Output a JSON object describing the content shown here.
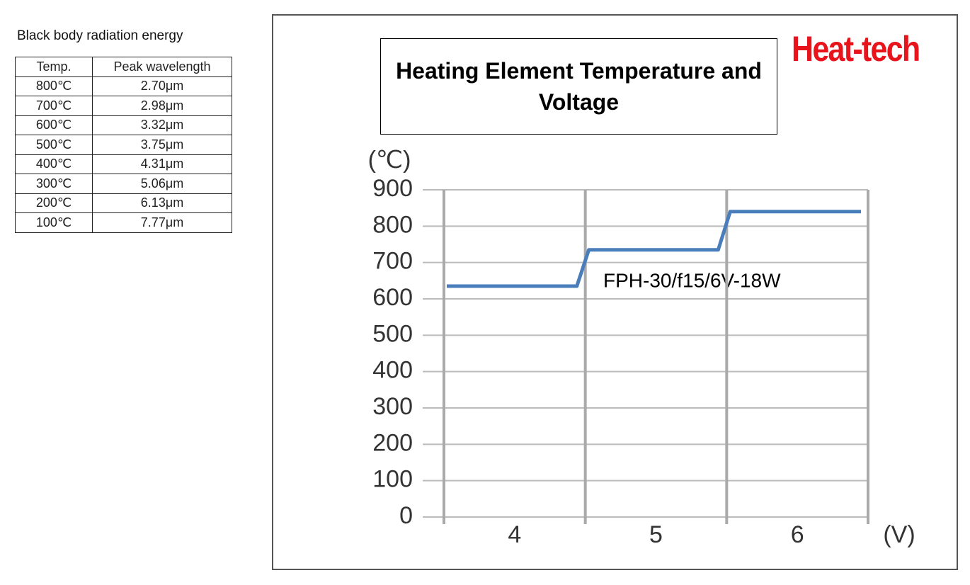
{
  "table": {
    "title": "Black body radiation energy",
    "header": [
      "Temp.",
      "Peak wavelength"
    ],
    "rows": [
      [
        "800℃",
        "2.70μm"
      ],
      [
        "700℃",
        "2.98μm"
      ],
      [
        "600℃",
        "3.32μm"
      ],
      [
        "500℃",
        "3.75μm"
      ],
      [
        "400℃",
        "4.31μm"
      ],
      [
        "300℃",
        "5.06μm"
      ],
      [
        "200℃",
        "6.13μm"
      ],
      [
        "100℃",
        "7.77μm"
      ]
    ]
  },
  "logo": "Heat-tech",
  "chart_data": {
    "type": "line",
    "title": "Heating Element Temperature and Voltage",
    "y_label": "(℃)",
    "x_label": "(V)",
    "annotation": "FPH-30/f15/6V-18W",
    "x": [
      3.52,
      4.44,
      4.525,
      5.44,
      5.525,
      6.45
    ],
    "series": [
      {
        "name": "FPH-30/f15/6V-18W",
        "color": "#4a7ebb",
        "values": [
          635,
          635,
          735,
          735,
          840,
          840
        ]
      }
    ],
    "xlim": [
      3.5,
      6.5
    ],
    "xticks": [
      4,
      5,
      6
    ],
    "ylim": [
      0,
      900
    ],
    "yticks": [
      0,
      100,
      200,
      300,
      400,
      500,
      600,
      700,
      800,
      900
    ],
    "grid": true
  }
}
